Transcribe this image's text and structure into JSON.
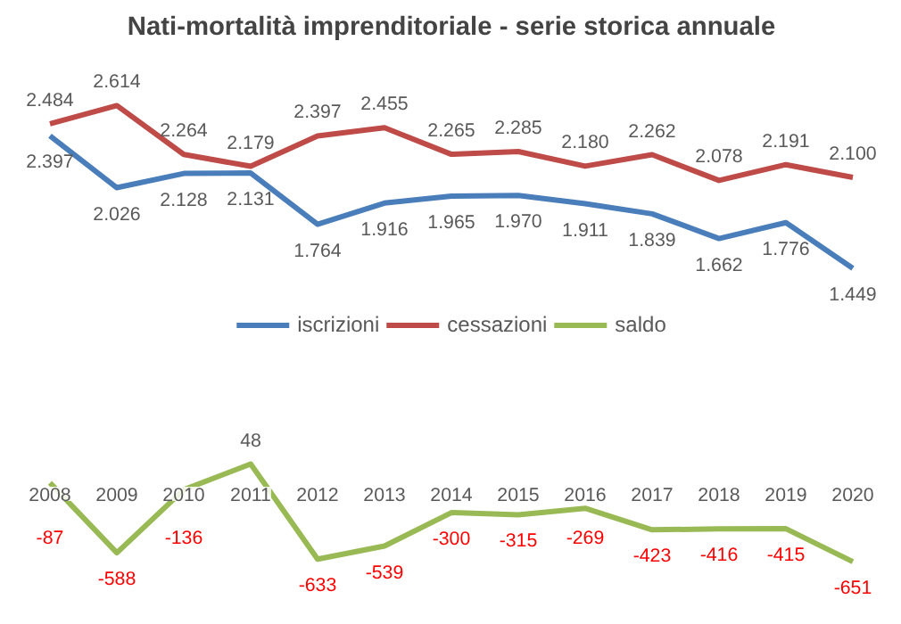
{
  "chart_data": {
    "type": "line",
    "title": "Nati-mortalità imprenditoriale - serie storica annuale",
    "categories": [
      "2008",
      "2009",
      "2010",
      "2011",
      "2012",
      "2013",
      "2014",
      "2015",
      "2016",
      "2017",
      "2018",
      "2019",
      "2020"
    ],
    "series": [
      {
        "name": "iscrizioni",
        "color": "#4a7ebb",
        "values": [
          2397,
          2026,
          2128,
          2131,
          1764,
          1916,
          1965,
          1970,
          1911,
          1839,
          1662,
          1776,
          1449
        ],
        "value_labels": [
          "2.397",
          "2.026",
          "2.128",
          "2.131",
          "1.764",
          "1.916",
          "1.965",
          "1.970",
          "1.911",
          "1.839",
          "1.662",
          "1.776",
          "1.449"
        ]
      },
      {
        "name": "cessazioni",
        "color": "#be4b48",
        "values": [
          2484,
          2614,
          2264,
          2179,
          2397,
          2455,
          2265,
          2285,
          2180,
          2262,
          2078,
          2191,
          2100
        ],
        "value_labels": [
          "2.484",
          "2.614",
          "2.264",
          "2.179",
          "2.397",
          "2.455",
          "2.265",
          "2.285",
          "2.180",
          "2.262",
          "2.078",
          "2.191",
          "2.100"
        ]
      },
      {
        "name": "saldo",
        "color": "#98b954",
        "values": [
          -87,
          -588,
          -136,
          48,
          -633,
          -539,
          -300,
          -315,
          -269,
          -423,
          -416,
          -415,
          -651
        ],
        "value_labels": [
          "-87",
          "-588",
          "-136",
          "48",
          "-633",
          "-539",
          "-300",
          "-315",
          "-269",
          "-423",
          "-416",
          "-415",
          "-651"
        ]
      }
    ],
    "legend": "center",
    "grid": false,
    "line_style": "solid",
    "marker": "none"
  }
}
